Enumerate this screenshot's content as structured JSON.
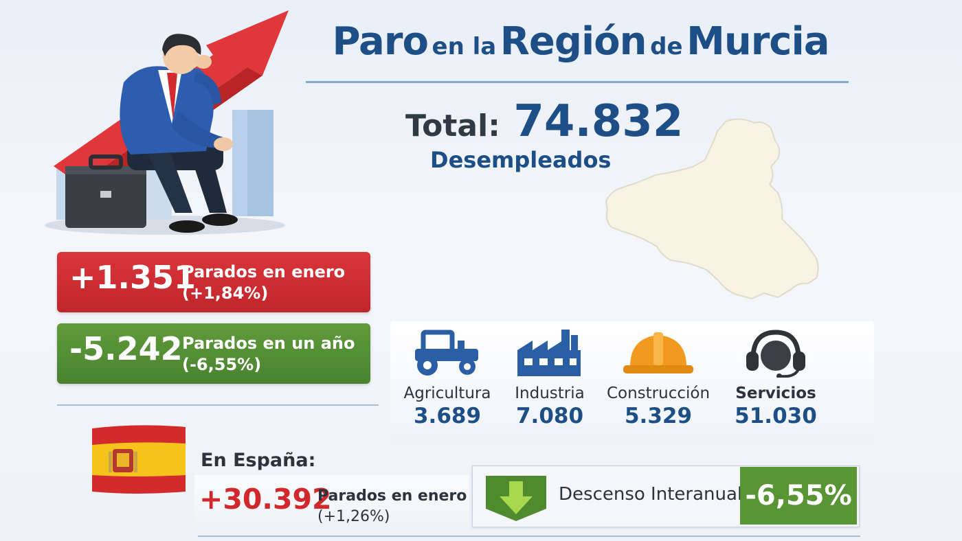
{
  "header": {
    "title_word1": "Paro",
    "title_word2": "en la",
    "title_word3": "Región",
    "title_word4": "de",
    "title_word5": "Murcia",
    "total_label": "Total:",
    "total_value": "74.832",
    "total_unit": "Desempleados"
  },
  "stats": [
    {
      "value": "+1.351",
      "label": "Parados en enero",
      "pct": "(+1,84%)",
      "color": "#c8292e"
    },
    {
      "value": "-5.242",
      "label": "Parados en un año",
      "pct": "(-6,55%)",
      "color": "#508a33"
    }
  ],
  "sectors": [
    {
      "name": "Agricultura",
      "value": "3.689",
      "icon": "tractor-icon"
    },
    {
      "name": "Industria",
      "value": "7.080",
      "icon": "factory-icon"
    },
    {
      "name": "Construcción",
      "value": "5.329",
      "icon": "hard-hat-icon"
    },
    {
      "name": "Servicios",
      "value": "51.030",
      "icon": "headset-icon"
    }
  ],
  "spain": {
    "label": "En España:",
    "value": "+30.392",
    "desc": "Parados en enero",
    "pct": "(+1,26%)"
  },
  "interanual": {
    "label": "Descenso Interanual",
    "value": "-6,55%",
    "icon": "down-arrow-icon"
  },
  "colors": {
    "primary_blue": "#1d4f86",
    "red": "#c8292e",
    "green": "#508a33"
  }
}
